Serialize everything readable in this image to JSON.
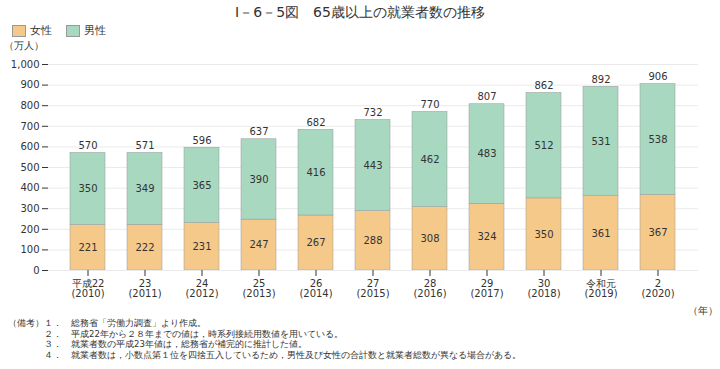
{
  "chart_data": {
    "type": "bar",
    "stacked": true,
    "title": "I－6－5図　65歳以上の就業者数の推移",
    "ylabel": "（万人）",
    "xlabel": "（年）",
    "categories": [
      "平成22\n(2010)",
      "23\n(2011)",
      "24\n(2012)",
      "25\n(2013)",
      "26\n(2014)",
      "27\n(2015)",
      "28\n(2016)",
      "29\n(2017)",
      "30\n(2018)",
      "令和元\n(2019)",
      "2\n(2020)"
    ],
    "series": [
      {
        "name": "女性",
        "color": "#F5C98A",
        "values": [
          221,
          222,
          231,
          247,
          267,
          288,
          308,
          324,
          350,
          361,
          367
        ]
      },
      {
        "name": "男性",
        "color": "#A8D8C0",
        "values": [
          350,
          349,
          365,
          390,
          416,
          443,
          462,
          483,
          512,
          531,
          538
        ]
      }
    ],
    "totals": [
      570,
      571,
      596,
      637,
      682,
      732,
      770,
      807,
      862,
      892,
      906
    ],
    "data_labels": true,
    "ylim": [
      0,
      1000
    ],
    "yticks": [
      0,
      100,
      200,
      300,
      400,
      500,
      600,
      700,
      800,
      900,
      {
        "value": 1000,
        "label": "1,000"
      }
    ],
    "grid": true,
    "legend": "upper left",
    "annotations": [
      "（備考）１．　総務省「労働力調査」より作成。",
      "　　　　２．　平成22年から２８年までの値は，時系列接続用数値を用いている。",
      "　　　　３．　就業者数の平成23年値は，総務省が補完的に推計した値。",
      "　　　　４．　就業者数は，小数点第１位を四捨五入しているため，男性及び女性の合計数と就業者総数が異なる場合がある。"
    ]
  }
}
